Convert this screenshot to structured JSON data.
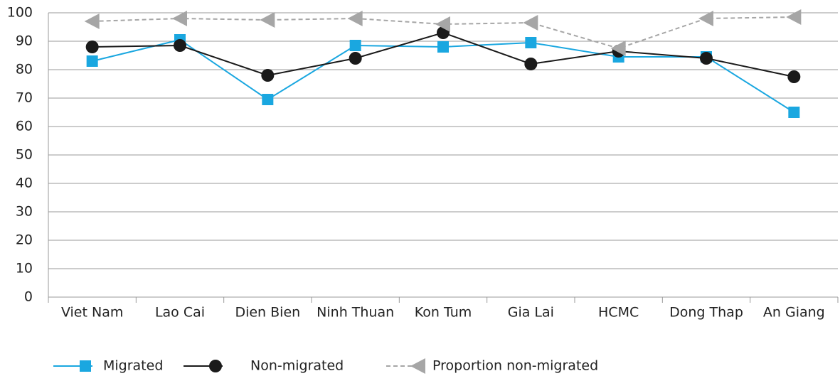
{
  "chart_data": {
    "type": "line",
    "categories": [
      "Viet Nam",
      "Lao Cai",
      "Dien Bien",
      "Ninh Thuan",
      "Kon Tum",
      "Gia Lai",
      "HCMC",
      "Dong Thap",
      "An Giang"
    ],
    "series": [
      {
        "name": "Migrated",
        "color": "#1aa7e0",
        "marker": "square",
        "values": [
          83,
          90.5,
          69.5,
          88.5,
          88,
          89.5,
          84.5,
          84.5,
          65
        ]
      },
      {
        "name": "Non-migrated",
        "color": "#1a1a1a",
        "marker": "circle",
        "values": [
          88,
          88.5,
          78,
          84,
          93,
          82,
          86.5,
          84,
          77.5
        ]
      },
      {
        "name": "Proportion non-migrated",
        "color": "#a6a6a6",
        "marker": "triangle",
        "dashed": true,
        "values": [
          97,
          98,
          97.5,
          98,
          96,
          96.5,
          87.5,
          98,
          98.5
        ]
      }
    ],
    "ylim": [
      0,
      100
    ],
    "yticks": [
      0,
      10,
      20,
      30,
      40,
      50,
      60,
      70,
      80,
      90,
      100
    ],
    "grid": true,
    "legend": "bottom"
  }
}
